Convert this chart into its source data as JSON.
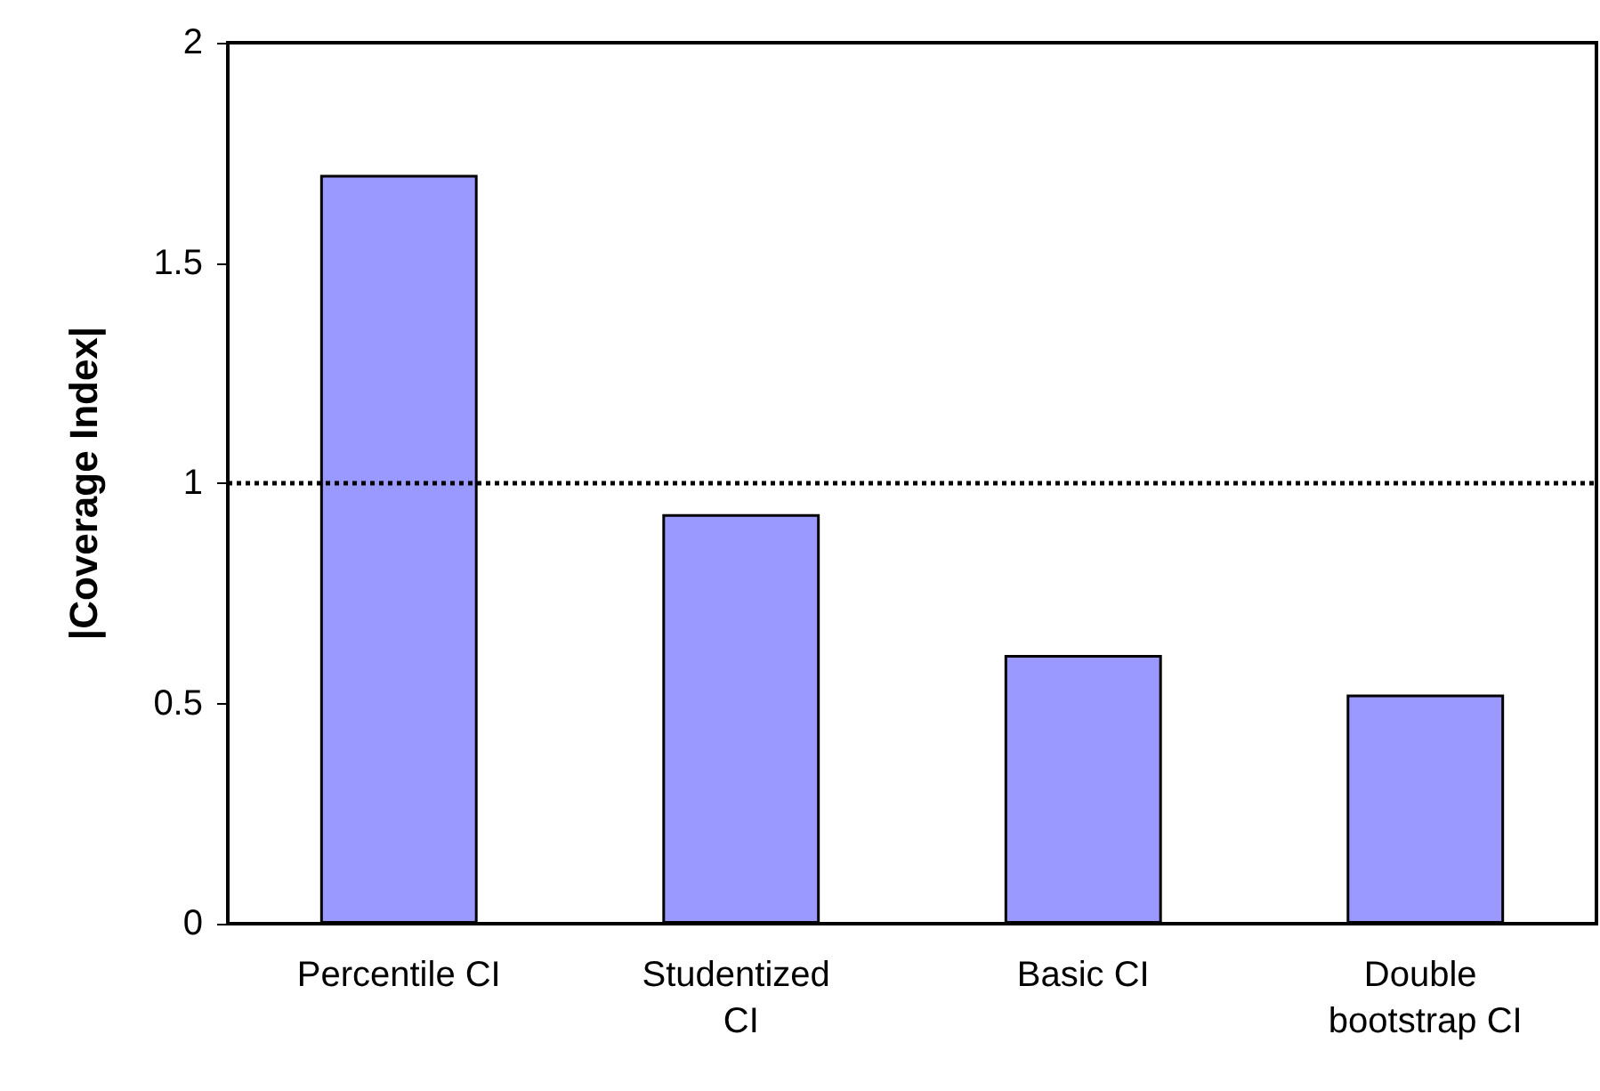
{
  "chart_data": {
    "type": "bar",
    "ylabel": "|Coverage Index|",
    "categories": [
      "Percentile CI",
      "Studentized CI",
      "Basic CI",
      "Double bootstrap CI"
    ],
    "values": [
      1.7,
      0.93,
      0.61,
      0.52
    ],
    "color": "#9999ff",
    "ylim": [
      0,
      2
    ],
    "yticks": [
      0,
      0.5,
      1,
      1.5,
      2
    ],
    "grid": false,
    "ref_lines": [
      {
        "axis": "y",
        "value": 1,
        "line_style": "dotted",
        "color": "#000000"
      }
    ]
  }
}
